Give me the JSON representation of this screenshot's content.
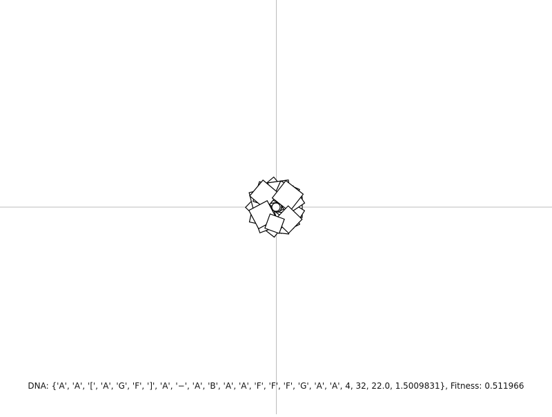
{
  "status": {
    "dna_label": "DNA:",
    "dna_value": "{'A', 'A', '[', 'A', 'G', 'F', ']', 'A', '−', 'A', 'B', 'A', 'A', 'F', 'F', 'F', 'G', 'A', 'A', 4, 32, 22.0, 1.5009831}",
    "fitness_label": "Fitness:",
    "fitness_value": "0.511966"
  },
  "colors": {
    "background": "#ffffff",
    "axis": "#bbbbbb",
    "shape_stroke": "#000000",
    "shape_fill": "#ffffff"
  }
}
